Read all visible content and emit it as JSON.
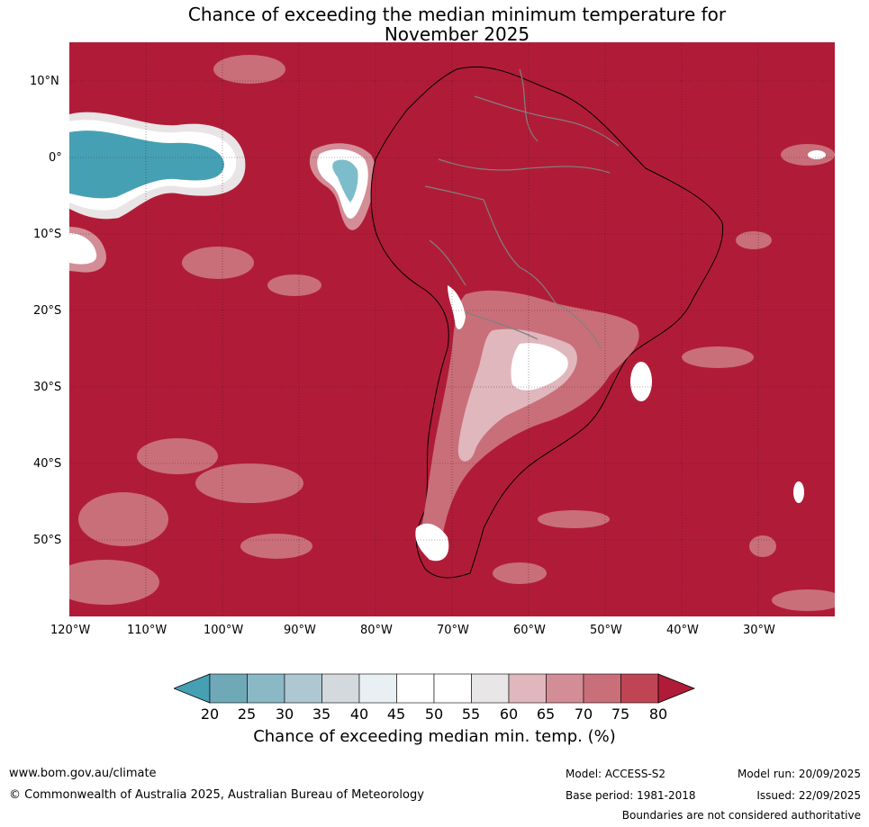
{
  "title_line1": "Chance of exceeding the median minimum temperature for",
  "title_line2": "November 2025",
  "lat_labels": [
    "10°N",
    "0°",
    "10°S",
    "20°S",
    "30°S",
    "40°S",
    "50°S"
  ],
  "lon_labels": [
    "120°W",
    "110°W",
    "100°W",
    "90°W",
    "80°W",
    "70°W",
    "60°W",
    "50°W",
    "40°W",
    "30°W"
  ],
  "colorbar": {
    "ticks": [
      "20",
      "25",
      "30",
      "35",
      "40",
      "45",
      "50",
      "55",
      "60",
      "65",
      "70",
      "75",
      "80"
    ],
    "colors": [
      "#46a0b4",
      "#6fa9b8",
      "#8bb8c5",
      "#adc8d0",
      "#d3d9dc",
      "#e9f0f3",
      "#ffffff",
      "#ffffff",
      "#e8e6e7",
      "#e0b7bd",
      "#d38d96",
      "#c96f7a",
      "#bf4555",
      "#b01c38"
    ],
    "label": "Chance of exceeding median min. temp. (%)"
  },
  "colors": {
    "ocean_high": "#b01c38",
    "cool": "#46a0b4"
  },
  "footer": {
    "website": "www.bom.gov.au/climate",
    "copyright": "© Commonwealth of Australia 2025, Australian Bureau of Meteorology",
    "model": "Model: ACCESS-S2",
    "base_period": "Base period: 1981-2018",
    "model_run": "Model run: 20/09/2025",
    "issued": "Issued: 22/09/2025",
    "disclaimer": "Boundaries are not considered authoritative"
  }
}
